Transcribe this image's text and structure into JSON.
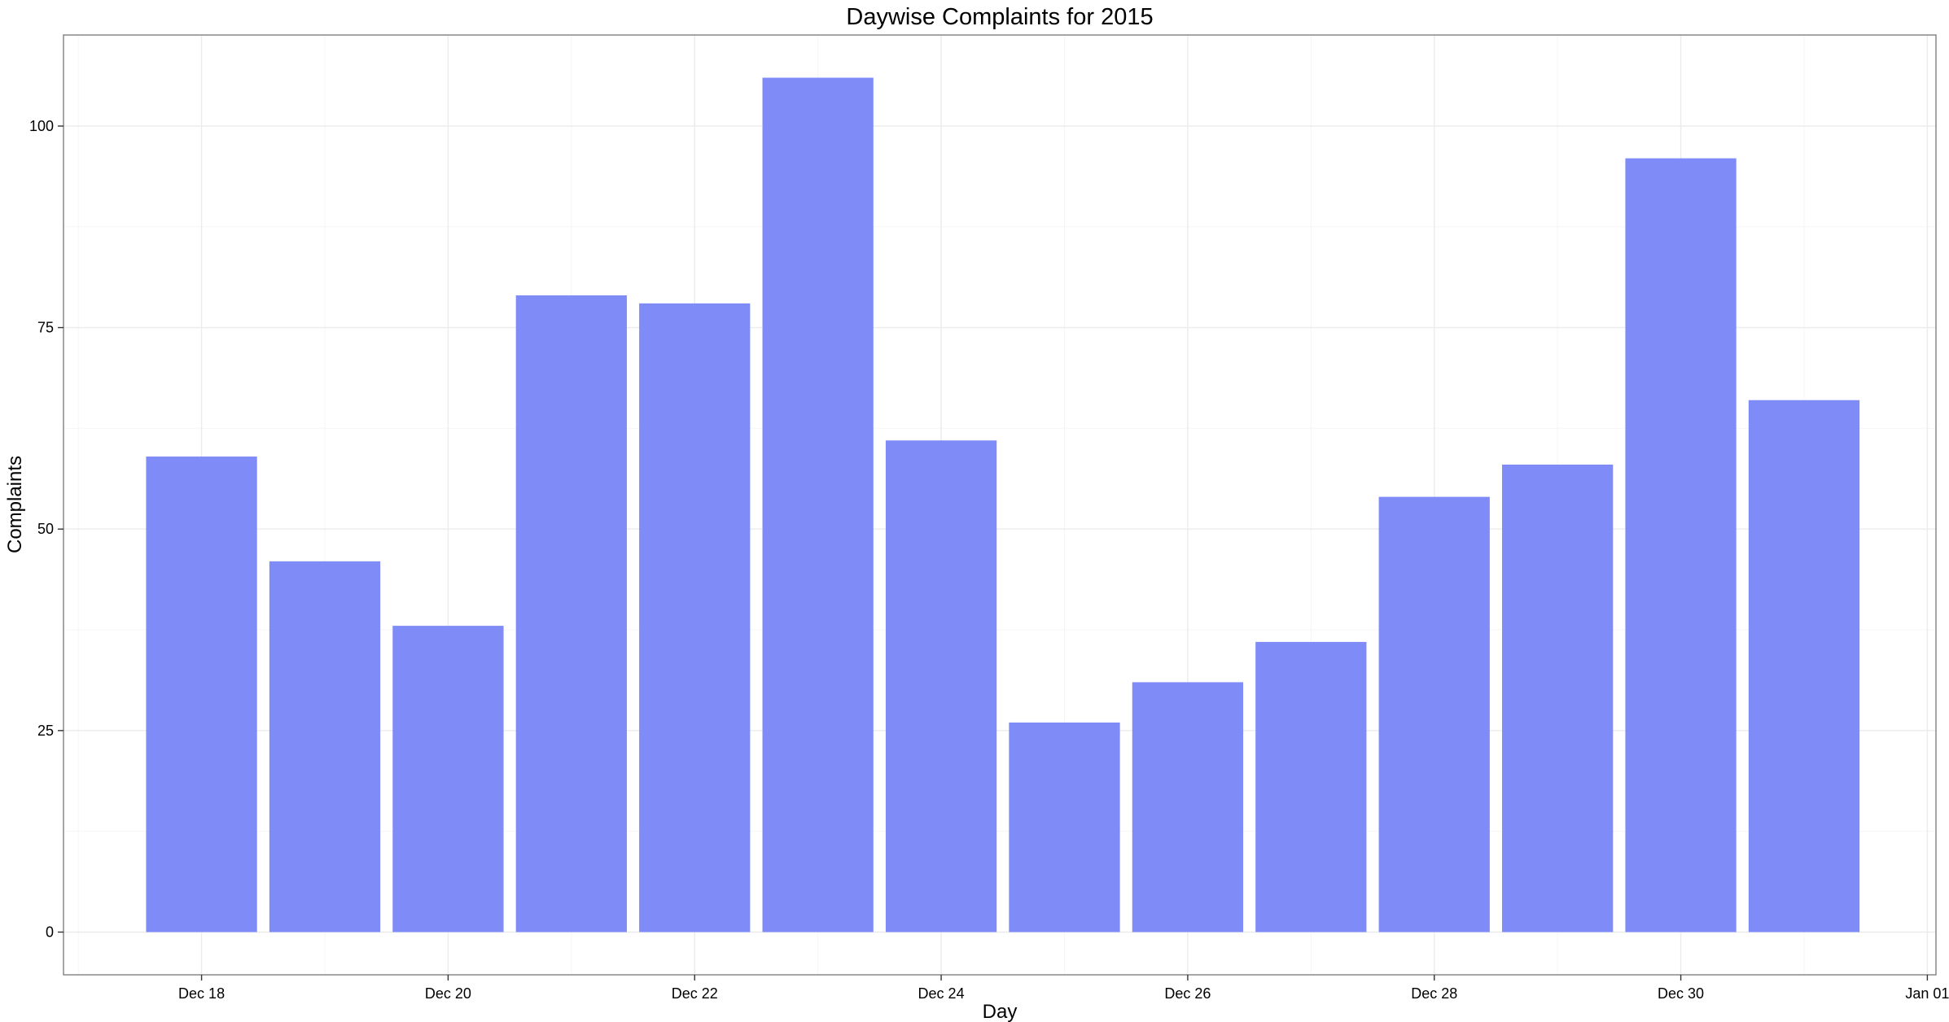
{
  "chart_data": {
    "type": "bar",
    "title": "Daywise Complaints for 2015",
    "xlabel": "Day",
    "ylabel": "Complaints",
    "x": [
      "2015-12-18",
      "2015-12-19",
      "2015-12-20",
      "2015-12-21",
      "2015-12-22",
      "2015-12-23",
      "2015-12-24",
      "2015-12-25",
      "2015-12-26",
      "2015-12-27",
      "2015-12-28",
      "2015-12-29",
      "2015-12-30",
      "2015-12-31"
    ],
    "values": [
      59,
      46,
      38,
      79,
      78,
      106,
      61,
      26,
      31,
      36,
      54,
      58,
      96,
      66
    ],
    "xlim": [
      "2015-12-16.88",
      "2016-01-01.07"
    ],
    "ylim": [
      -5.3,
      111.3
    ],
    "x_ticks": [
      {
        "date": "2015-12-18",
        "label": "Dec 18"
      },
      {
        "date": "2015-12-20",
        "label": "Dec 20"
      },
      {
        "date": "2015-12-22",
        "label": "Dec 22"
      },
      {
        "date": "2015-12-24",
        "label": "Dec 24"
      },
      {
        "date": "2015-12-26",
        "label": "Dec 26"
      },
      {
        "date": "2015-12-28",
        "label": "Dec 28"
      },
      {
        "date": "2015-12-30",
        "label": "Dec 30"
      },
      {
        "date": "2016-01-01",
        "label": "Jan 01"
      }
    ],
    "y_ticks": [
      0,
      25,
      50,
      75,
      100
    ],
    "grid": true,
    "legend": "none",
    "bar_color": "#7f8cf8"
  }
}
